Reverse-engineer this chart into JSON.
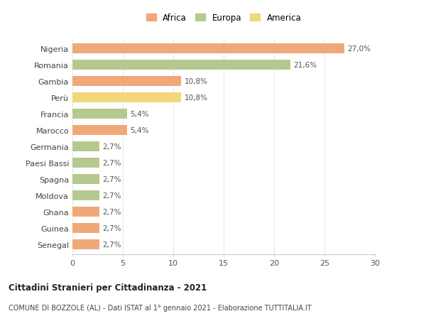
{
  "countries": [
    "Nigeria",
    "Romania",
    "Gambia",
    "Perù",
    "Francia",
    "Marocco",
    "Germania",
    "Paesi Bassi",
    "Spagna",
    "Moldova",
    "Ghana",
    "Guinea",
    "Senegal"
  ],
  "values": [
    27.0,
    21.6,
    10.8,
    10.8,
    5.4,
    5.4,
    2.7,
    2.7,
    2.7,
    2.7,
    2.7,
    2.7,
    2.7
  ],
  "labels": [
    "27,0%",
    "21,6%",
    "10,8%",
    "10,8%",
    "5,4%",
    "5,4%",
    "2,7%",
    "2,7%",
    "2,7%",
    "2,7%",
    "2,7%",
    "2,7%",
    "2,7%"
  ],
  "continents": [
    "Africa",
    "Europa",
    "Africa",
    "America",
    "Europa",
    "Africa",
    "Europa",
    "Europa",
    "Europa",
    "Europa",
    "Africa",
    "Africa",
    "Africa"
  ],
  "colors": {
    "Africa": "#F0A878",
    "Europa": "#B5C98E",
    "America": "#F0D878"
  },
  "legend_labels": [
    "Africa",
    "Europa",
    "America"
  ],
  "legend_colors": [
    "#F0A878",
    "#B5C98E",
    "#F0D878"
  ],
  "title1": "Cittadini Stranieri per Cittadinanza - 2021",
  "title2": "COMUNE DI BOZZOLE (AL) - Dati ISTAT al 1° gennaio 2021 - Elaborazione TUTTITALIA.IT",
  "xlim": [
    0,
    30
  ],
  "xticks": [
    0,
    5,
    10,
    15,
    20,
    25,
    30
  ],
  "background_color": "#ffffff",
  "grid_color": "#e8e8e8"
}
